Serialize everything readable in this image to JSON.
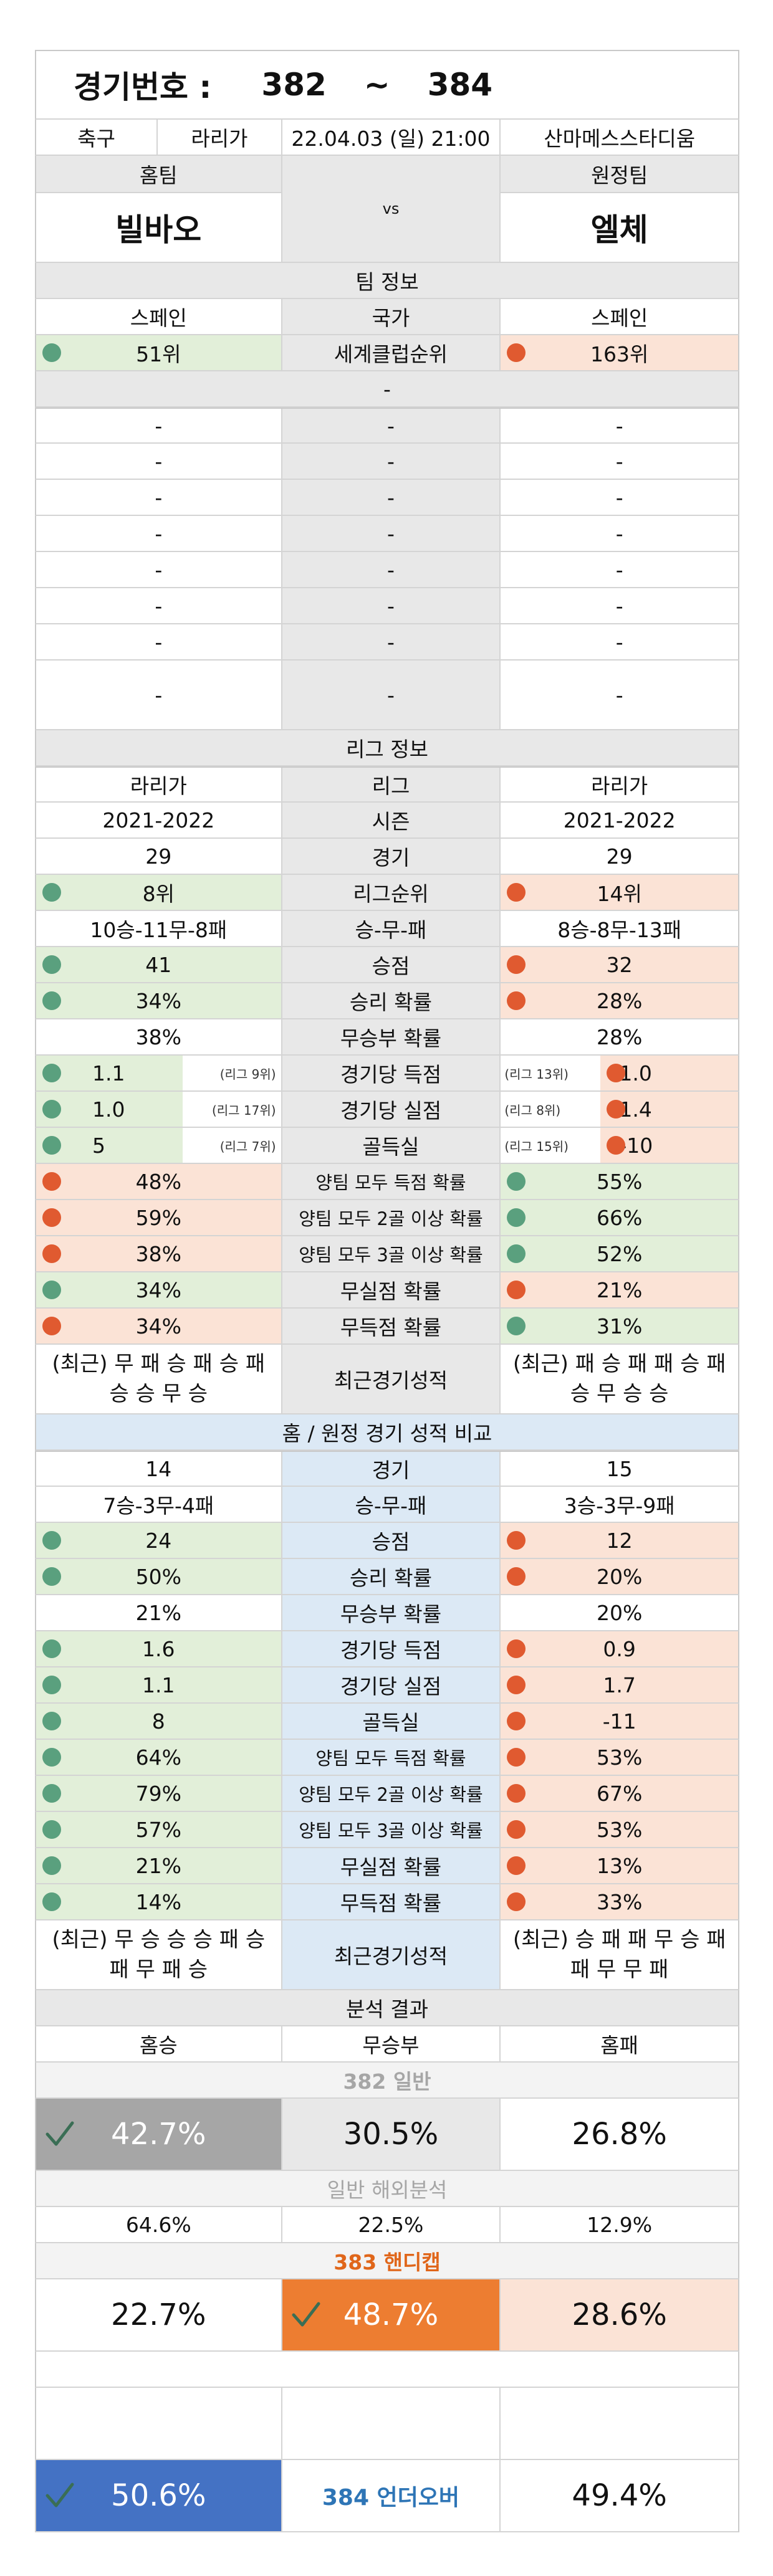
{
  "header": {
    "title_label": "경기번호 :",
    "num_from": "382",
    "tilde": "~",
    "num_to": "384"
  },
  "match": {
    "sport": "축구",
    "league": "라리가",
    "datetime": "22.04.03 (일) 21:00",
    "venue": "산마메스스타디움"
  },
  "teams": {
    "home_label": "홈팀",
    "away_label": "원정팀",
    "home": "빌바오",
    "away": "엘체",
    "vs": "vs"
  },
  "team_info": {
    "section": "팀 정보",
    "country": {
      "label": "국가",
      "home": "스페인",
      "away": "스페인"
    },
    "world_rank": {
      "label": "세계클럽순위",
      "home": "51위",
      "away": "163위"
    },
    "dash": "-"
  },
  "league_info": {
    "section": "리그 정보",
    "rows": [
      {
        "label": "리그",
        "home": "라리가",
        "away": "라리가"
      },
      {
        "label": "시즌",
        "home": "2021-2022",
        "away": "2021-2022"
      },
      {
        "label": "경기",
        "home": "29",
        "away": "29"
      },
      {
        "label": "리그순위",
        "home": "8위",
        "away": "14위",
        "hd": "g",
        "ad": "r",
        "hb": "gr",
        "ab": "pk"
      },
      {
        "label": "승-무-패",
        "home": "10승-11무-8패",
        "away": "8승-8무-13패"
      },
      {
        "label": "승점",
        "home": "41",
        "away": "32",
        "hd": "g",
        "ad": "r",
        "hb": "gr",
        "ab": "pk"
      },
      {
        "label": "승리 확률",
        "home": "34%",
        "away": "28%",
        "hd": "g",
        "ad": "r",
        "hb": "gr",
        "ab": "pk"
      },
      {
        "label": "무승부 확률",
        "home": "38%",
        "away": "28%"
      },
      {
        "label": "경기당 득점",
        "home": "1.1",
        "away": "1.0",
        "hd": "g",
        "ad": "r",
        "hb": "gr",
        "ab": "pk",
        "hn": "(리그 9위)",
        "an": "(리그 13위)"
      },
      {
        "label": "경기당 실점",
        "home": "1.0",
        "away": "1.4",
        "hd": "g",
        "ad": "r",
        "hb": "gr",
        "ab": "pk",
        "hn": "(리그 17위)",
        "an": "(리그 8위)"
      },
      {
        "label": "골득실",
        "home": "5",
        "away": "-10",
        "hd": "g",
        "ad": "r",
        "hb": "gr",
        "ab": "pk",
        "hn": "(리그 7위)",
        "an": "(리그 15위)"
      },
      {
        "label": "양팀 모두 득점 확률",
        "home": "48%",
        "away": "55%",
        "hd": "r",
        "ad": "g",
        "hb": "pk",
        "ab": "gr"
      },
      {
        "label": "양팀 모두 2골 이상 확률",
        "home": "59%",
        "away": "66%",
        "hd": "r",
        "ad": "g",
        "hb": "pk",
        "ab": "gr"
      },
      {
        "label": "양팀 모두 3골 이상 확률",
        "home": "38%",
        "away": "52%",
        "hd": "r",
        "ad": "g",
        "hb": "pk",
        "ab": "gr"
      },
      {
        "label": "무실점 확률",
        "home": "34%",
        "away": "21%",
        "hd": "g",
        "ad": "r",
        "hb": "gr",
        "ab": "pk"
      },
      {
        "label": "무득점 확률",
        "home": "34%",
        "away": "31%",
        "hd": "r",
        "ad": "g",
        "hb": "pk",
        "ab": "gr"
      }
    ],
    "recent": {
      "label": "최근경기성적",
      "home": "(최근) 무 패 승 패 승 패 승 승 무 승",
      "away": "(최근) 패 승 패 패 승 패 승 무 승 승"
    }
  },
  "compare": {
    "section": "홈 / 원정 경기 성적 비교",
    "rows": [
      {
        "label": "경기",
        "home": "14",
        "away": "15"
      },
      {
        "label": "승-무-패",
        "home": "7승-3무-4패",
        "away": "3승-3무-9패"
      },
      {
        "label": "승점",
        "home": "24",
        "away": "12",
        "hd": "g",
        "ad": "r",
        "hb": "gr",
        "ab": "pk"
      },
      {
        "label": "승리 확률",
        "home": "50%",
        "away": "20%",
        "hd": "g",
        "ad": "r",
        "hb": "gr",
        "ab": "pk"
      },
      {
        "label": "무승부 확률",
        "home": "21%",
        "away": "20%"
      },
      {
        "label": "경기당 득점",
        "home": "1.6",
        "away": "0.9",
        "hd": "g",
        "ad": "r",
        "hb": "gr",
        "ab": "pk"
      },
      {
        "label": "경기당 실점",
        "home": "1.1",
        "away": "1.7",
        "hd": "g",
        "ad": "r",
        "hb": "gr",
        "ab": "pk"
      },
      {
        "label": "골득실",
        "home": "8",
        "away": "-11",
        "hd": "g",
        "ad": "r",
        "hb": "gr",
        "ab": "pk"
      },
      {
        "label": "양팀 모두 득점 확률",
        "home": "64%",
        "away": "53%",
        "hd": "g",
        "ad": "r",
        "hb": "gr",
        "ab": "pk"
      },
      {
        "label": "양팀 모두 2골 이상 확률",
        "home": "79%",
        "away": "67%",
        "hd": "g",
        "ad": "r",
        "hb": "gr",
        "ab": "pk"
      },
      {
        "label": "양팀 모두 3골 이상 확률",
        "home": "57%",
        "away": "53%",
        "hd": "g",
        "ad": "r",
        "hb": "gr",
        "ab": "pk"
      },
      {
        "label": "무실점 확률",
        "home": "21%",
        "away": "13%",
        "hd": "g",
        "ad": "r",
        "hb": "gr",
        "ab": "pk"
      },
      {
        "label": "무득점 확률",
        "home": "14%",
        "away": "33%",
        "hd": "g",
        "ad": "r",
        "hb": "gr",
        "ab": "pk"
      }
    ],
    "recent": {
      "label": "최근경기성적",
      "home": "(최근) 무 승 승 승 패 승 패 무 패 승",
      "away": "(최근) 승 패 패 무 승 패 패 무 무 패"
    }
  },
  "analysis": {
    "section": "분석 결과",
    "col_home": "홈승",
    "col_draw": "무승부",
    "col_away": "홈패",
    "general_title": "382 일반",
    "general": {
      "home": "42.7%",
      "draw": "30.5%",
      "away": "26.8%"
    },
    "overseas_title": "일반 해외분석",
    "overseas": {
      "home": "64.6%",
      "draw": "22.5%",
      "away": "12.9%"
    },
    "handicap_title": "383 핸디캡",
    "handicap": {
      "home": "22.7%",
      "draw": "48.7%",
      "away": "28.6%"
    },
    "uo_title": "384 언더오버",
    "uo": {
      "under": "50.6%",
      "over": "49.4%"
    },
    "colors": {
      "gray_pick": "#a6a6a6",
      "orange_pick": "#ed7d31",
      "blue_pick": "#4472c4",
      "handicap_title": "#e0661a",
      "uo_title": "#2e75b6",
      "muted_title": "#a6a6a6"
    }
  }
}
